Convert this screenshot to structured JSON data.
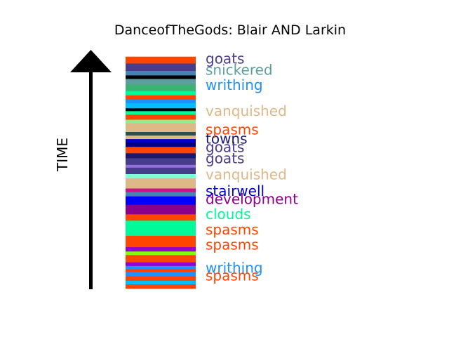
{
  "chart_data": {
    "type": "bar",
    "title": "DanceofTheGods: Blair AND Larkin",
    "axis_label": "TIME",
    "ylim": [
      0,
      100
    ],
    "stripes": [
      {
        "from": 0.0,
        "to": 1.9,
        "color": "#ff4500"
      },
      {
        "from": 1.9,
        "to": 3.4,
        "color": "#00bfff"
      },
      {
        "from": 3.4,
        "to": 5.3,
        "color": "#ff4500"
      },
      {
        "from": 5.3,
        "to": 7.2,
        "color": "#1e90ff"
      },
      {
        "from": 7.2,
        "to": 8.4,
        "color": "#ff4500"
      },
      {
        "from": 8.4,
        "to": 9.7,
        "color": "#1e90ff"
      },
      {
        "from": 9.7,
        "to": 11.2,
        "color": "#9400d3"
      },
      {
        "from": 11.2,
        "to": 14.3,
        "color": "#ff4500"
      },
      {
        "from": 14.3,
        "to": 15.8,
        "color": "#7fff00"
      },
      {
        "from": 15.8,
        "to": 17.6,
        "color": "#9400d3"
      },
      {
        "from": 17.6,
        "to": 22.4,
        "color": "#ff4500"
      },
      {
        "from": 22.4,
        "to": 28.8,
        "color": "#00fa9a"
      },
      {
        "from": 28.8,
        "to": 31.5,
        "color": "#ff4500"
      },
      {
        "from": 31.5,
        "to": 35.5,
        "color": "#8b008b"
      },
      {
        "from": 35.5,
        "to": 39.1,
        "color": "#0000ff"
      },
      {
        "from": 39.1,
        "to": 40.9,
        "color": "#4682b4"
      },
      {
        "from": 40.9,
        "to": 42.4,
        "color": "#c71585"
      },
      {
        "from": 42.4,
        "to": 46.7,
        "color": "#deb887"
      },
      {
        "from": 46.7,
        "to": 48.5,
        "color": "#7fffd4"
      },
      {
        "from": 48.5,
        "to": 51.2,
        "color": "#483d8b"
      },
      {
        "from": 51.2,
        "to": 52.4,
        "color": "#9370db"
      },
      {
        "from": 52.4,
        "to": 55.2,
        "color": "#483d8b"
      },
      {
        "from": 55.2,
        "to": 57.3,
        "color": "#191970"
      },
      {
        "from": 57.3,
        "to": 60.0,
        "color": "#ff4500"
      },
      {
        "from": 60.0,
        "to": 61.8,
        "color": "#000080"
      },
      {
        "from": 61.8,
        "to": 63.3,
        "color": "#0000cd"
      },
      {
        "from": 63.3,
        "to": 64.8,
        "color": "#deb887"
      },
      {
        "from": 64.8,
        "to": 66.3,
        "color": "#2f4f4f"
      },
      {
        "from": 66.3,
        "to": 70.0,
        "color": "#deb887"
      },
      {
        "from": 70.0,
        "to": 71.5,
        "color": "#90ee90"
      },
      {
        "from": 71.5,
        "to": 73.6,
        "color": "#ff4500"
      },
      {
        "from": 73.6,
        "to": 75.1,
        "color": "#00fa9a"
      },
      {
        "from": 75.1,
        "to": 76.3,
        "color": "#000000"
      },
      {
        "from": 76.3,
        "to": 78.5,
        "color": "#00bfff"
      },
      {
        "from": 78.5,
        "to": 80.0,
        "color": "#1e90ff"
      },
      {
        "from": 80.0,
        "to": 81.8,
        "color": "#ff4500"
      },
      {
        "from": 81.8,
        "to": 83.6,
        "color": "#00fa9a"
      },
      {
        "from": 83.6,
        "to": 86.3,
        "color": "#3cb371"
      },
      {
        "from": 86.3,
        "to": 88.7,
        "color": "#5f9ea0"
      },
      {
        "from": 88.7,
        "to": 90.2,
        "color": "#000000"
      },
      {
        "from": 90.2,
        "to": 92.1,
        "color": "#4682b4"
      },
      {
        "from": 92.1,
        "to": 95.2,
        "color": "#483d8b"
      },
      {
        "from": 95.2,
        "to": 98.0,
        "color": "#ff4500"
      }
    ],
    "annotations": [
      {
        "text": "spasms",
        "y": 5.5,
        "color": "#ff4500"
      },
      {
        "text": "writhing",
        "y": 8.7,
        "color": "#1e90ff"
      },
      {
        "text": "spasms",
        "y": 18.5,
        "color": "#ff4500"
      },
      {
        "text": "spasms",
        "y": 25.0,
        "color": "#ff4500"
      },
      {
        "text": "clouds",
        "y": 31.5,
        "color": "#00fa9a"
      },
      {
        "text": "development",
        "y": 37.8,
        "color": "#8b008b"
      },
      {
        "text": "stairwell",
        "y": 41.3,
        "color": "#0000cd"
      },
      {
        "text": "vanquished",
        "y": 48.2,
        "color": "#deb887"
      },
      {
        "text": "goats",
        "y": 55.1,
        "color": "#483d8b"
      },
      {
        "text": "goats",
        "y": 59.8,
        "color": "#483d8b"
      },
      {
        "text": "towns",
        "y": 63.3,
        "color": "#191970"
      },
      {
        "text": "spasms",
        "y": 67.2,
        "color": "#ff4500"
      },
      {
        "text": "vanquished",
        "y": 75.1,
        "color": "#deb887"
      },
      {
        "text": "writhing",
        "y": 86.0,
        "color": "#1e90ff"
      },
      {
        "text": "snickered",
        "y": 92.5,
        "color": "#5f9ea0"
      },
      {
        "text": "goats",
        "y": 97.2,
        "color": "#483d8b"
      }
    ]
  }
}
